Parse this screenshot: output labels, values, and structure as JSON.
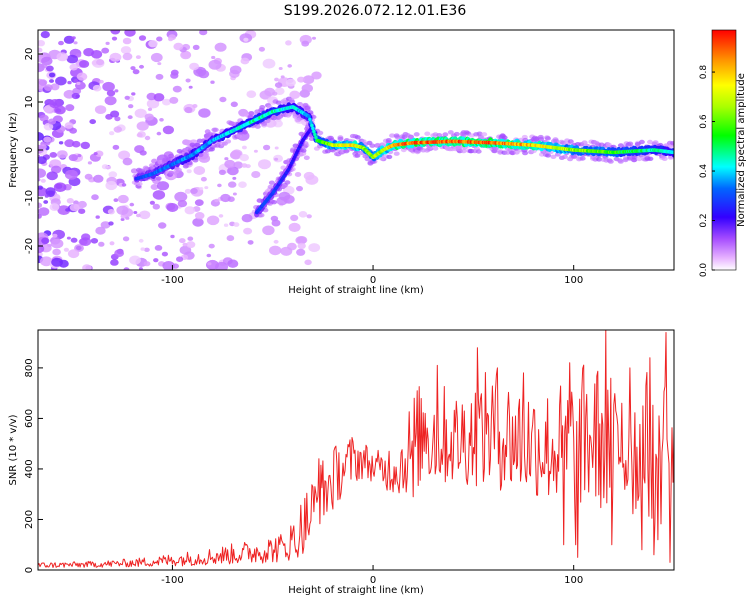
{
  "title": "S199.2026.072.12.01.E36",
  "chart_data": [
    {
      "type": "heatmap",
      "title": "S199.2026.072.12.01.E36",
      "xlabel": "Height of straight line (km)",
      "ylabel": "Frequency (Hz)",
      "xlim": [
        -167,
        150
      ],
      "ylim": [
        -25,
        25
      ],
      "x_ticks": [
        -100,
        0,
        100
      ],
      "x_tick_labels": [
        "-100",
        "0",
        "100"
      ],
      "y_ticks": [
        -20,
        -10,
        0,
        10,
        20
      ],
      "y_tick_labels": [
        "-20",
        "-10",
        "0",
        "10",
        "20"
      ],
      "colorbar": {
        "label": "Normalized spectral amplitude",
        "range": [
          0,
          0.97
        ],
        "ticks": [
          0,
          0.2,
          0.4,
          0.6,
          0.8
        ],
        "tick_labels": [
          "0.0",
          "0.2",
          "0.4",
          "0.6",
          "0.8"
        ],
        "colormap": "rainbow (white-magenta-purple-blue-cyan-green-yellow-orange-red)"
      },
      "ridge_main": {
        "x": [
          -118,
          -110,
          -100,
          -90,
          -80,
          -70,
          -60,
          -50,
          -40,
          -32,
          -28,
          -20,
          -10,
          -5,
          0,
          5,
          10,
          20,
          40,
          60,
          80,
          100,
          120,
          140,
          150
        ],
        "y": [
          -6,
          -5,
          -3,
          -1,
          2,
          4,
          6,
          8,
          9,
          7,
          2,
          1,
          1,
          0.5,
          -1.5,
          0,
          1,
          1.5,
          1.8,
          1.5,
          1,
          0,
          -0.5,
          0,
          -0.5
        ],
        "amplitude": [
          0.3,
          0.35,
          0.35,
          0.4,
          0.4,
          0.45,
          0.5,
          0.5,
          0.45,
          0.4,
          0.55,
          0.75,
          0.85,
          0.7,
          0.7,
          0.75,
          0.9,
          0.95,
          0.95,
          0.95,
          0.85,
          0.7,
          0.6,
          0.5,
          0.45
        ]
      },
      "ridge_secondary": {
        "x": [
          -58,
          -50,
          -42,
          -35,
          -30
        ],
        "y": [
          -13,
          -9,
          -4,
          2,
          5
        ],
        "amplitude": [
          0.3,
          0.3,
          0.25,
          0.25,
          0.2
        ]
      }
    },
    {
      "type": "line",
      "xlabel": "Height of straight line (km)",
      "ylabel": "SNR (10 * v/v)",
      "xlim": [
        -167,
        150
      ],
      "ylim": [
        0,
        950
      ],
      "x_ticks": [
        -100,
        0,
        100
      ],
      "x_tick_labels": [
        "-100",
        "0",
        "100"
      ],
      "y_ticks": [
        0,
        200,
        400,
        600,
        800
      ],
      "y_tick_labels": [
        "0",
        "200",
        "400",
        "600",
        "800"
      ],
      "color": "#ee2222",
      "envelope": {
        "x": [
          -167,
          -140,
          -120,
          -100,
          -80,
          -60,
          -45,
          -40,
          -35,
          -30,
          -25,
          -20,
          -15,
          -10,
          -5,
          0,
          5,
          10,
          15,
          20,
          30,
          40,
          50,
          60,
          70,
          80,
          90,
          100,
          110,
          120,
          130,
          140,
          145,
          150
        ],
        "low": [
          8,
          10,
          12,
          15,
          20,
          25,
          30,
          40,
          60,
          100,
          180,
          230,
          300,
          340,
          360,
          350,
          320,
          300,
          290,
          320,
          330,
          340,
          330,
          320,
          300,
          290,
          260,
          250,
          240,
          220,
          200,
          180,
          160,
          150
        ],
        "high": [
          30,
          35,
          45,
          65,
          90,
          120,
          150,
          200,
          300,
          380,
          450,
          490,
          520,
          540,
          520,
          470,
          480,
          520,
          560,
          720,
          780,
          700,
          760,
          800,
          760,
          740,
          720,
          800,
          840,
          780,
          740,
          820,
          880,
          750
        ]
      },
      "spikes": {
        "x": [
          -38,
          -27,
          -18,
          20,
          26,
          32,
          52,
          57,
          62,
          75,
          95,
          98,
          101,
          102,
          114,
          116,
          119,
          124,
          128,
          134,
          138,
          140,
          142,
          146,
          148,
          150
        ],
        "y": [
          80,
          440,
          420,
          290,
          620,
          810,
          880,
          620,
          800,
          780,
          100,
          820,
          100,
          50,
          620,
          950,
          100,
          660,
          800,
          80,
          840,
          60,
          120,
          940,
          30,
          560
        ]
      }
    }
  ]
}
